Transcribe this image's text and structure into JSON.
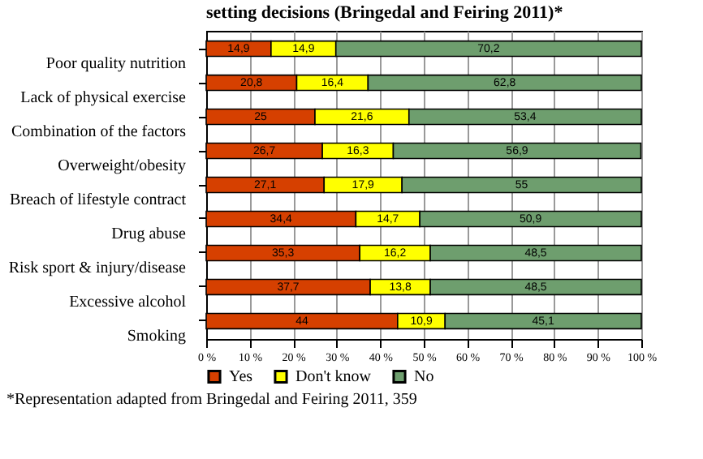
{
  "chart_data": {
    "type": "bar",
    "orientation": "horizontal",
    "stacked": true,
    "title": "setting decisions (Bringedal and Feiring 2011)*",
    "categories": [
      "Poor quality nutrition",
      "Lack of physical exercise",
      "Combination of the factors",
      "Overweight/obesity",
      "Breach of lifestyle contract",
      "Drug abuse",
      "Risk sport & injury/disease",
      "Excessive alcohol",
      "Smoking"
    ],
    "series": [
      {
        "name": "Yes",
        "color": "#d64000",
        "values": [
          14.9,
          20.8,
          25,
          26.7,
          27.1,
          34.4,
          35.3,
          37.7,
          44
        ],
        "value_labels": [
          "14,9",
          "20,8",
          "25",
          "26,7",
          "27,1",
          "34,4",
          "35,3",
          "37,7",
          "44"
        ]
      },
      {
        "name": "Don't know",
        "color": "#ffff00",
        "values": [
          14.9,
          16.4,
          21.6,
          16.3,
          17.9,
          14.7,
          16.2,
          13.8,
          10.9
        ],
        "value_labels": [
          "14,9",
          "16,4",
          "21,6",
          "16,3",
          "17,9",
          "14,7",
          "16,2",
          "13,8",
          "10,9"
        ]
      },
      {
        "name": "No",
        "color": "#6e9e6e",
        "values": [
          70.2,
          62.8,
          53.4,
          56.9,
          55,
          50.9,
          48.5,
          48.5,
          45.1
        ],
        "value_labels": [
          "70,2",
          "62,8",
          "53,4",
          "56,9",
          "55",
          "50,9",
          "48,5",
          "48,5",
          "45,1"
        ]
      }
    ],
    "xlim": [
      0,
      100
    ],
    "xticks": [
      {
        "value": 0,
        "label": "0 %"
      },
      {
        "value": 10,
        "label": "10 %"
      },
      {
        "value": 20,
        "label": "20 %"
      },
      {
        "value": 30,
        "label": "30 %"
      },
      {
        "value": 40,
        "label": "40 %"
      },
      {
        "value": 50,
        "label": "50 %"
      },
      {
        "value": 60,
        "label": "60 %"
      },
      {
        "value": 70,
        "label": "70 %"
      },
      {
        "value": 80,
        "label": "80 %"
      },
      {
        "value": 90,
        "label": "90 %"
      },
      {
        "value": 100,
        "label": "100 %"
      }
    ],
    "grid": "x",
    "legend": "bottom",
    "annotations": [
      "*Representation adapted from Bringedal and Feiring 2011, 359"
    ]
  }
}
